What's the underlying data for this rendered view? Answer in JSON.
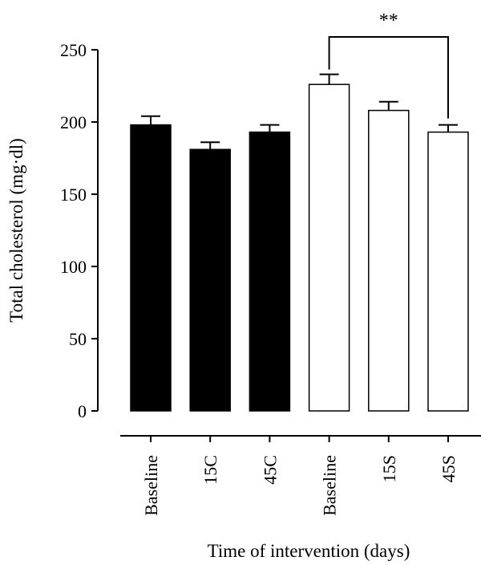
{
  "chart_data": {
    "type": "bar",
    "title": "",
    "xlabel": "Time of intervention (days)",
    "ylabel": "Total cholesterol (mg·dl)",
    "ylim": [
      0,
      250
    ],
    "yticks": [
      0,
      50,
      100,
      150,
      200,
      250
    ],
    "grid": false,
    "categories": [
      "Baseline",
      "15C",
      "45C",
      "Baseline",
      "15S",
      "45S"
    ],
    "values": [
      198,
      181,
      193,
      226,
      208,
      193
    ],
    "errors": [
      6,
      5,
      5,
      7,
      6,
      5
    ],
    "bar_fills": [
      "#000000",
      "#000000",
      "#000000",
      "#ffffff",
      "#ffffff",
      "#ffffff"
    ],
    "bar_stroke": "#000000",
    "significance": {
      "from_index": 3,
      "to_index": 5,
      "label": "**"
    }
  }
}
